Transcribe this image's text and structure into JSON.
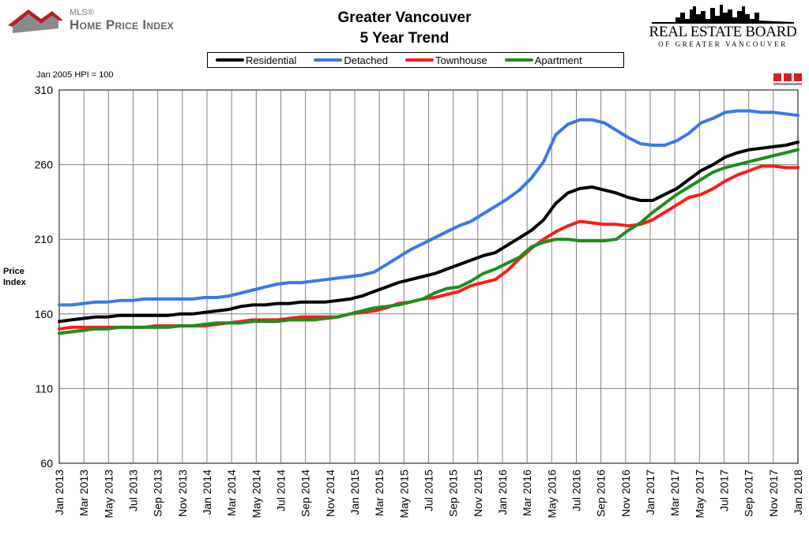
{
  "header": {
    "left_logo_small": "MLS®",
    "left_logo_text": "Home Price Index",
    "title_line1": "Greater Vancouver",
    "title_line2": "5 Year Trend",
    "board_name": "REAL ESTATE BOARD",
    "board_sub": "OF GREATER VANCOUVER"
  },
  "chart_note": "Jan 2005 HPI = 100",
  "ylabel_line1": "Price",
  "ylabel_line2": "Index",
  "chart_data": {
    "type": "line",
    "title": "Greater Vancouver 5 Year Trend",
    "ylabel": "Price Index",
    "ylim": [
      60,
      310
    ],
    "yticks": [
      60,
      110,
      160,
      210,
      260,
      310
    ],
    "xticks": [
      "Jan 2013",
      "Mar 2013",
      "May 2013",
      "Jul 2013",
      "Sep 2013",
      "Nov 2013",
      "Jan 2014",
      "Mar 2014",
      "May 2014",
      "Jul 2014",
      "Sep 2014",
      "Nov 2014",
      "Jan 2015",
      "Mar 2015",
      "May 2015",
      "Jul 2015",
      "Sep 2015",
      "Nov 2015",
      "Jan 2016",
      "Mar 2016",
      "May 2016",
      "Jul 2016",
      "Sep 2016",
      "Nov 2016",
      "Jan 2017",
      "Mar 2017",
      "May 2017",
      "Jul 2017",
      "Sep 2017",
      "Nov 2017",
      "Jan 2018"
    ],
    "grid": true,
    "legend_position": "top",
    "series": [
      {
        "name": "Residential",
        "color": "#000000",
        "values": [
          155,
          156,
          157,
          158,
          158,
          159,
          159,
          159,
          159,
          159,
          160,
          160,
          161,
          162,
          163,
          165,
          166,
          166,
          167,
          167,
          168,
          168,
          168,
          169,
          170,
          172,
          175,
          178,
          181,
          183,
          185,
          187,
          190,
          193,
          196,
          199,
          201,
          206,
          211,
          216,
          223,
          234,
          241,
          244,
          245,
          243,
          241,
          238,
          236,
          236,
          240,
          244,
          250,
          256,
          260,
          265,
          268,
          270,
          271,
          272,
          273,
          275
        ]
      },
      {
        "name": "Detached",
        "color": "#3a78e6",
        "values": [
          166,
          166,
          167,
          168,
          168,
          169,
          169,
          170,
          170,
          170,
          170,
          170,
          171,
          171,
          172,
          174,
          176,
          178,
          180,
          181,
          181,
          182,
          183,
          184,
          185,
          186,
          188,
          193,
          198,
          203,
          207,
          211,
          215,
          219,
          222,
          227,
          232,
          237,
          243,
          251,
          262,
          280,
          287,
          290,
          290,
          288,
          283,
          278,
          274,
          273,
          273,
          276,
          281,
          288,
          291,
          295,
          296,
          296,
          295,
          295,
          294,
          293
        ]
      },
      {
        "name": "Townhouse",
        "color": "#ff1a1a",
        "values": [
          150,
          151,
          151,
          151,
          151,
          151,
          151,
          151,
          152,
          152,
          152,
          152,
          152,
          153,
          154,
          155,
          156,
          156,
          156,
          157,
          158,
          158,
          158,
          158,
          160,
          161,
          162,
          164,
          167,
          168,
          170,
          171,
          173,
          175,
          179,
          181,
          183,
          189,
          197,
          204,
          210,
          215,
          219,
          222,
          221,
          220,
          220,
          219,
          220,
          223,
          228,
          233,
          238,
          240,
          244,
          249,
          253,
          256,
          259,
          259,
          258,
          258
        ]
      },
      {
        "name": "Apartment",
        "color": "#1e8c1e",
        "values": [
          147,
          148,
          149,
          150,
          150,
          151,
          151,
          151,
          151,
          151,
          152,
          152,
          153,
          154,
          154,
          154,
          155,
          155,
          155,
          156,
          156,
          156,
          157,
          158,
          160,
          162,
          164,
          165,
          166,
          168,
          170,
          174,
          177,
          178,
          182,
          187,
          190,
          194,
          198,
          205,
          208,
          210,
          210,
          209,
          209,
          209,
          210,
          216,
          221,
          228,
          234,
          240,
          245,
          250,
          255,
          258,
          260,
          262,
          264,
          266,
          268,
          270
        ]
      }
    ]
  }
}
